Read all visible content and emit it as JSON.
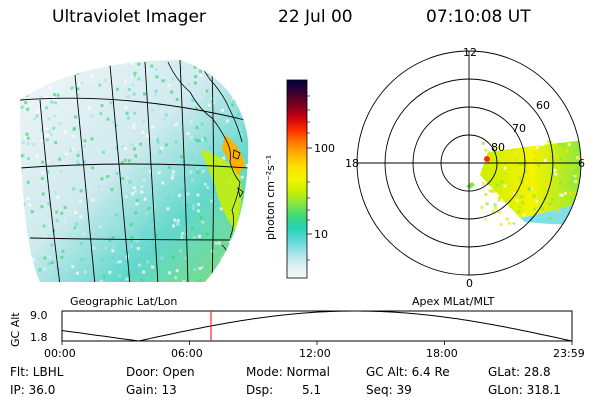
{
  "header": {
    "instrument": "Ultraviolet Imager",
    "date": "22 Jul 00",
    "time": "07:10:08 UT"
  },
  "colorbar": {
    "unit_label": "photon cm⁻²s⁻¹",
    "ticks": [
      "100",
      "10"
    ],
    "colors": [
      "#000040",
      "#3a0030",
      "#7a0020",
      "#c80010",
      "#ff2a00",
      "#ff7a00",
      "#ffb000",
      "#ffe000",
      "#f4f400",
      "#c8f000",
      "#86e640",
      "#3cd878",
      "#28d2b4",
      "#62d8dc",
      "#a8e4ea",
      "#dcf0f2",
      "#f6f8f8"
    ]
  },
  "geo_panel": {
    "label": "Geographic Lat/Lon"
  },
  "polar_panel": {
    "label": "Apex MLat/MLT",
    "mlt_labels": {
      "top": "12",
      "left": "18",
      "right": "6",
      "bottom": "0"
    },
    "lat_labels": [
      "60",
      "70",
      "80"
    ]
  },
  "timeline": {
    "ylabel": "GC Alt",
    "y_ticks": [
      "9.0",
      "1.8"
    ],
    "x_ticks": [
      "00:00",
      "06:00",
      "12:00",
      "18:00",
      "23:59"
    ],
    "marker_color": "#ff0000"
  },
  "info": {
    "flt": "Flt: LBHL",
    "ip": "IP: 36.0",
    "door": "Door: Open",
    "gain": "Gain: 13",
    "mode": "Mode: Normal",
    "dsp_label": "Dsp:",
    "dsp_value": "5.1",
    "gc_alt": "GC Alt: 6.4 Re",
    "seq": "Seq: 39",
    "glat": "GLat: 28.8",
    "glon": "GLon: 318.1"
  }
}
